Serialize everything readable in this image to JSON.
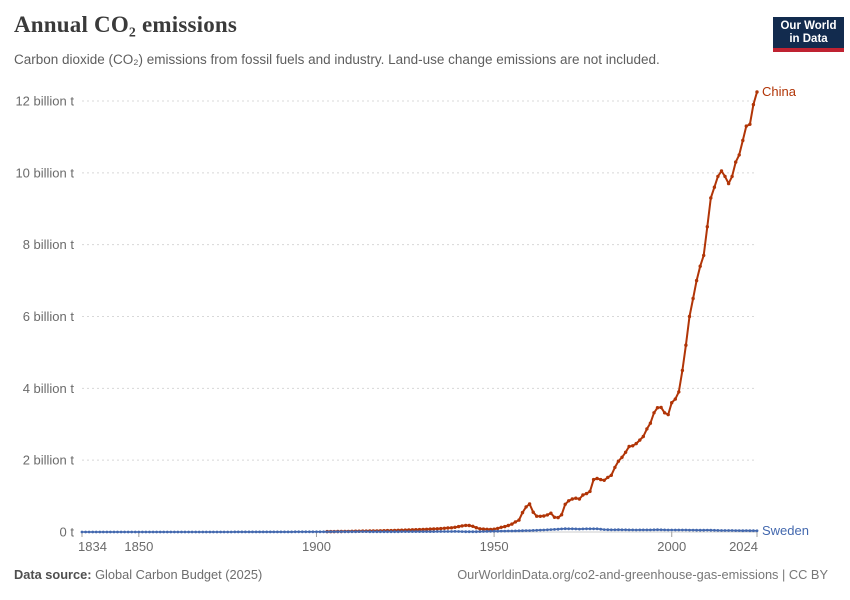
{
  "header": {
    "title": "Annual CO₂ emissions",
    "subtitle": "Carbon dioxide (CO₂) emissions from fossil fuels and industry. Land-use change emissions are not included."
  },
  "logo": {
    "line1": "Our World",
    "line2": "in Data"
  },
  "footer": {
    "source_label": "Data source:",
    "source_value": "Global Carbon Budget (2025)",
    "credit": "OurWorldinData.org/co2-and-greenhouse-gas-emissions | CC BY"
  },
  "colors": {
    "china": "#b13507",
    "sweden": "#4368ae",
    "grid": "#d8d8d8",
    "zero_line": "#cccccc",
    "tick": "#a0a0a0",
    "axis_text": "#6b6b6b",
    "logo_bg": "#122b4e",
    "logo_red": "#bf2231"
  },
  "chart_data": {
    "type": "line",
    "title": "Annual CO₂ emissions",
    "xlabel": "",
    "ylabel": "",
    "unit": "billion tonnes CO₂ per year",
    "xlim": [
      1834,
      2024
    ],
    "ylim": [
      0,
      12
    ],
    "grid": "dashed-horizontal",
    "legend_position": "line-end-labels",
    "x_ticks": [
      1834,
      1850,
      1900,
      1950,
      2000,
      2024
    ],
    "y_ticks": [
      {
        "value": 0,
        "label": "0 t"
      },
      {
        "value": 2,
        "label": "2 billion t"
      },
      {
        "value": 4,
        "label": "4 billion t"
      },
      {
        "value": 6,
        "label": "6 billion t"
      },
      {
        "value": 8,
        "label": "8 billion t"
      },
      {
        "value": 10,
        "label": "10 billion t"
      },
      {
        "value": 12,
        "label": "12 billion t"
      }
    ],
    "series": [
      {
        "name": "China",
        "color": "#b13507",
        "start_year": 1903,
        "values": [
          0.01,
          0.011,
          0.012,
          0.013,
          0.014,
          0.016,
          0.018,
          0.02,
          0.021,
          0.022,
          0.024,
          0.026,
          0.028,
          0.03,
          0.032,
          0.034,
          0.036,
          0.038,
          0.04,
          0.043,
          0.046,
          0.05,
          0.053,
          0.056,
          0.06,
          0.064,
          0.068,
          0.072,
          0.076,
          0.08,
          0.085,
          0.09,
          0.096,
          0.102,
          0.11,
          0.118,
          0.13,
          0.15,
          0.17,
          0.185,
          0.18,
          0.16,
          0.12,
          0.09,
          0.08,
          0.075,
          0.07,
          0.079,
          0.1,
          0.13,
          0.15,
          0.18,
          0.22,
          0.28,
          0.33,
          0.54,
          0.7,
          0.78,
          0.552,
          0.44,
          0.436,
          0.445,
          0.476,
          0.523,
          0.41,
          0.4,
          0.48,
          0.772,
          0.87,
          0.92,
          0.94,
          0.92,
          1.03,
          1.07,
          1.13,
          1.46,
          1.49,
          1.46,
          1.44,
          1.52,
          1.58,
          1.8,
          1.97,
          2.08,
          2.22,
          2.38,
          2.4,
          2.46,
          2.56,
          2.66,
          2.87,
          3.03,
          3.32,
          3.46,
          3.47,
          3.32,
          3.27,
          3.6,
          3.7,
          3.9,
          4.5,
          5.2,
          6.0,
          6.5,
          7.0,
          7.4,
          7.7,
          8.5,
          9.3,
          9.6,
          9.9,
          10.05,
          9.9,
          9.7,
          9.9,
          10.3,
          10.5,
          10.9,
          11.3,
          11.35,
          11.9,
          12.25
        ]
      },
      {
        "name": "Sweden",
        "color": "#4368ae",
        "points": [
          [
            1834,
            3e-06
          ],
          [
            1840,
            5e-05
          ],
          [
            1850,
            0.0001
          ],
          [
            1860,
            0.0004
          ],
          [
            1870,
            0.0008
          ],
          [
            1880,
            0.0017
          ],
          [
            1890,
            0.003
          ],
          [
            1900,
            0.006
          ],
          [
            1910,
            0.009
          ],
          [
            1913,
            0.011
          ],
          [
            1917,
            0.007
          ],
          [
            1920,
            0.009
          ],
          [
            1925,
            0.01
          ],
          [
            1930,
            0.011
          ],
          [
            1935,
            0.013
          ],
          [
            1939,
            0.016
          ],
          [
            1942,
            0.009
          ],
          [
            1945,
            0.008
          ],
          [
            1950,
            0.021
          ],
          [
            1955,
            0.028
          ],
          [
            1960,
            0.04
          ],
          [
            1965,
            0.06
          ],
          [
            1970,
            0.092
          ],
          [
            1972,
            0.088
          ],
          [
            1974,
            0.082
          ],
          [
            1976,
            0.09
          ],
          [
            1979,
            0.088
          ],
          [
            1981,
            0.068
          ],
          [
            1983,
            0.06
          ],
          [
            1985,
            0.063
          ],
          [
            1990,
            0.057
          ],
          [
            1993,
            0.058
          ],
          [
            1996,
            0.063
          ],
          [
            2000,
            0.055
          ],
          [
            2003,
            0.056
          ],
          [
            2005,
            0.053
          ],
          [
            2008,
            0.05
          ],
          [
            2010,
            0.052
          ],
          [
            2012,
            0.046
          ],
          [
            2014,
            0.043
          ],
          [
            2016,
            0.042
          ],
          [
            2018,
            0.04
          ],
          [
            2020,
            0.036
          ],
          [
            2021,
            0.038
          ],
          [
            2022,
            0.037
          ],
          [
            2023,
            0.035
          ],
          [
            2024,
            0.034
          ]
        ]
      }
    ]
  }
}
